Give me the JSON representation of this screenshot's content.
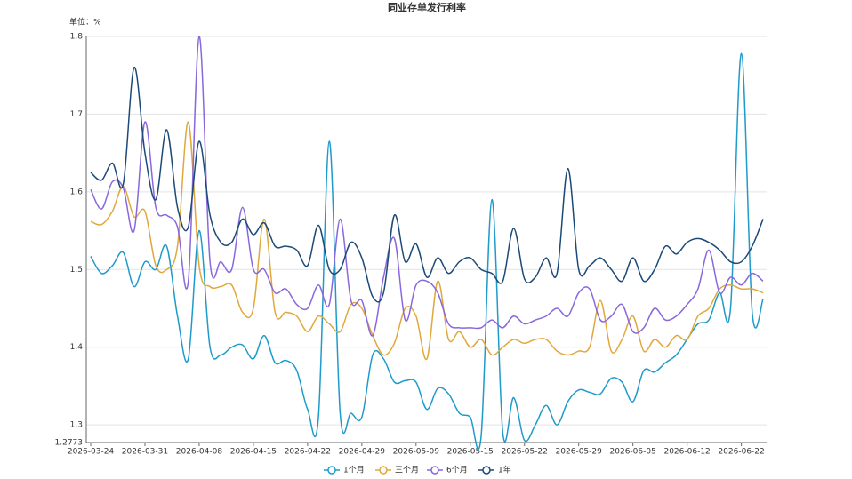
{
  "chart_data": {
    "type": "line",
    "title": "同业存单发行利率",
    "y_unit_label": "单位：%",
    "categories": [
      "2026-03-24",
      null,
      null,
      null,
      null,
      "2026-03-31",
      null,
      null,
      null,
      null,
      "2026-04-08",
      null,
      null,
      null,
      null,
      "2026-04-15",
      null,
      null,
      null,
      null,
      "2026-04-22",
      null,
      null,
      null,
      null,
      "2026-04-29",
      null,
      null,
      null,
      null,
      "2026-05-09",
      null,
      null,
      null,
      null,
      "2026-05-15",
      null,
      null,
      null,
      null,
      "2026-05-22",
      null,
      null,
      null,
      null,
      "2026-05-29",
      null,
      null,
      null,
      null,
      "2026-06-05",
      null,
      null,
      null,
      null,
      "2026-06-12",
      null,
      null,
      null,
      null,
      "2026-06-22",
      null,
      null
    ],
    "ylim": [
      1.2773,
      1.8
    ],
    "yticks": [
      1.2773,
      1.3,
      1.4,
      1.5,
      1.6,
      1.7,
      1.8
    ],
    "grid": true,
    "legend": "bottom",
    "series": [
      {
        "name": "1个月",
        "color": "#1e9bcb",
        "values": [
          1.517,
          1.495,
          1.505,
          1.522,
          1.478,
          1.51,
          1.5,
          1.53,
          1.44,
          1.385,
          1.55,
          1.4,
          1.39,
          1.4,
          1.403,
          1.385,
          1.415,
          1.38,
          1.383,
          1.37,
          1.32,
          1.31,
          1.665,
          1.315,
          1.315,
          1.31,
          1.39,
          1.385,
          1.355,
          1.357,
          1.355,
          1.32,
          1.347,
          1.34,
          1.315,
          1.31,
          1.285,
          1.59,
          1.29,
          1.335,
          1.28,
          1.3,
          1.325,
          1.3,
          1.33,
          1.345,
          1.342,
          1.34,
          1.36,
          1.355,
          1.33,
          1.37,
          1.368,
          1.38,
          1.39,
          1.41,
          1.43,
          1.435,
          1.47,
          1.45,
          1.778,
          1.445,
          1.462
        ]
      },
      {
        "name": "三个月",
        "color": "#e0a83c",
        "values": [
          1.562,
          1.558,
          1.575,
          1.607,
          1.568,
          1.575,
          1.505,
          1.5,
          1.53,
          1.69,
          1.505,
          1.478,
          1.478,
          1.48,
          1.445,
          1.45,
          1.565,
          1.445,
          1.445,
          1.44,
          1.42,
          1.44,
          1.43,
          1.42,
          1.455,
          1.45,
          1.415,
          1.39,
          1.405,
          1.45,
          1.44,
          1.385,
          1.485,
          1.41,
          1.42,
          1.4,
          1.41,
          1.39,
          1.4,
          1.41,
          1.405,
          1.41,
          1.41,
          1.395,
          1.39,
          1.395,
          1.4,
          1.46,
          1.395,
          1.41,
          1.44,
          1.395,
          1.41,
          1.4,
          1.415,
          1.41,
          1.44,
          1.45,
          1.475,
          1.48,
          1.475,
          1.475,
          1.47
        ]
      },
      {
        "name": "6个月",
        "color": "#8a68dc",
        "values": [
          1.603,
          1.578,
          1.613,
          1.605,
          1.55,
          1.69,
          1.58,
          1.57,
          1.555,
          1.485,
          1.8,
          1.51,
          1.51,
          1.5,
          1.58,
          1.5,
          1.5,
          1.47,
          1.475,
          1.455,
          1.45,
          1.48,
          1.455,
          1.565,
          1.46,
          1.46,
          1.415,
          1.49,
          1.54,
          1.435,
          1.48,
          1.485,
          1.47,
          1.43,
          1.425,
          1.425,
          1.425,
          1.435,
          1.425,
          1.44,
          1.43,
          1.435,
          1.44,
          1.45,
          1.44,
          1.47,
          1.475,
          1.435,
          1.44,
          1.455,
          1.42,
          1.425,
          1.45,
          1.435,
          1.44,
          1.455,
          1.475,
          1.525,
          1.47,
          1.49,
          1.48,
          1.495,
          1.485
        ]
      },
      {
        "name": "1年",
        "color": "#1b4a78",
        "values": [
          1.625,
          1.615,
          1.637,
          1.61,
          1.76,
          1.65,
          1.59,
          1.68,
          1.58,
          1.555,
          1.665,
          1.57,
          1.535,
          1.535,
          1.565,
          1.545,
          1.56,
          1.53,
          1.53,
          1.525,
          1.505,
          1.557,
          1.5,
          1.5,
          1.535,
          1.515,
          1.465,
          1.47,
          1.57,
          1.51,
          1.533,
          1.49,
          1.515,
          1.495,
          1.51,
          1.515,
          1.5,
          1.495,
          1.485,
          1.553,
          1.488,
          1.49,
          1.515,
          1.495,
          1.63,
          1.5,
          1.505,
          1.515,
          1.5,
          1.485,
          1.515,
          1.485,
          1.5,
          1.53,
          1.52,
          1.535,
          1.54,
          1.535,
          1.525,
          1.51,
          1.51,
          1.53,
          1.565
        ]
      }
    ]
  }
}
